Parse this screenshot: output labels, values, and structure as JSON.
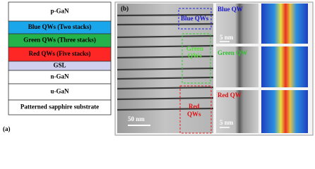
{
  "panel_a": {
    "label": "(a)",
    "layers": [
      "p-GaN",
      "Blue QWs (Two stacks)",
      "Green QWs (Three stacks)",
      "Red QWs (Five stacks)",
      "GSL",
      "n-GaN",
      "u-GaN",
      "Patterned sapphire substrate"
    ]
  },
  "panel_b": {
    "label": "(b)",
    "overview": {
      "blue": [
        "Blue QWs"
      ],
      "green": [
        "Green",
        "QWs"
      ],
      "red": [
        "Red",
        "QWs"
      ],
      "scale": "50 nm"
    },
    "closeups": [
      {
        "title": "Blue QW",
        "scale": "5 nm"
      },
      {
        "title": "Green QW"
      },
      {
        "title": "Red QW",
        "scale": "5 nm"
      }
    ]
  }
}
